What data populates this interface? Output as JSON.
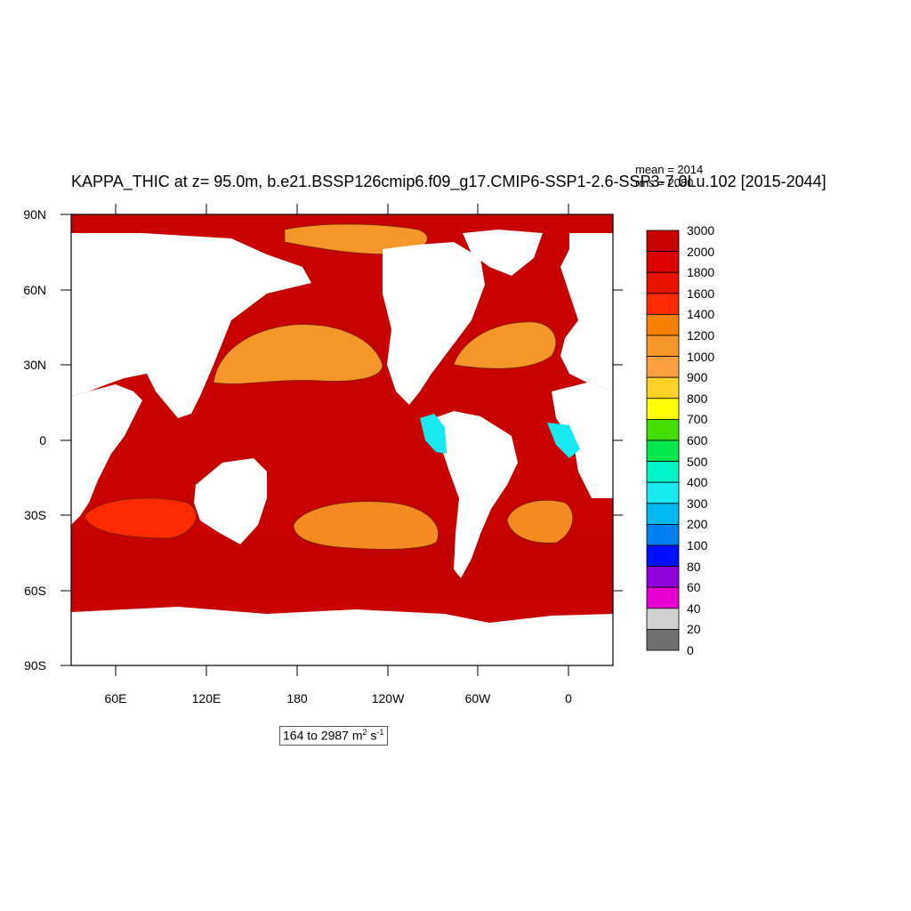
{
  "plot": {
    "title": "KAPPA_THIC at z=  95.0m, b.e21.BSSP126cmip6.f09_g17.CMIP6-SSP1-2.6-SSP3-7.0Lu.102 [2015-2044]",
    "mean_text": "mean = 2014",
    "rms_text": "rms = 2080",
    "range_prefix": "164 to 2987 m",
    "range_exp1": "2",
    "range_mid": " s",
    "range_exp2": "-1"
  },
  "axes": {
    "lat_labels": [
      "90N",
      "60N",
      "30N",
      "0",
      "30S",
      "60S",
      "90S"
    ],
    "lon_labels": [
      "60E",
      "120E",
      "180",
      "120W",
      "60W",
      "0"
    ]
  },
  "colorbar": {
    "labels": [
      "3000",
      "2000",
      "1800",
      "1600",
      "1400",
      "1200",
      "1000",
      "900",
      "800",
      "700",
      "600",
      "500",
      "400",
      "300",
      "200",
      "100",
      "80",
      "60",
      "40",
      "20",
      "0"
    ],
    "colors": [
      "#c80000",
      "#dc0000",
      "#e81400",
      "#ff2a00",
      "#f58000",
      "#f59628",
      "#ffa040",
      "#ffd228",
      "#ffff00",
      "#44dd00",
      "#00e84c",
      "#00f5c8",
      "#18e8f0",
      "#00b8f0",
      "#0080f0",
      "#0010ff",
      "#9000d8",
      "#e800d0",
      "#d0d0d0",
      "#707070"
    ]
  }
}
